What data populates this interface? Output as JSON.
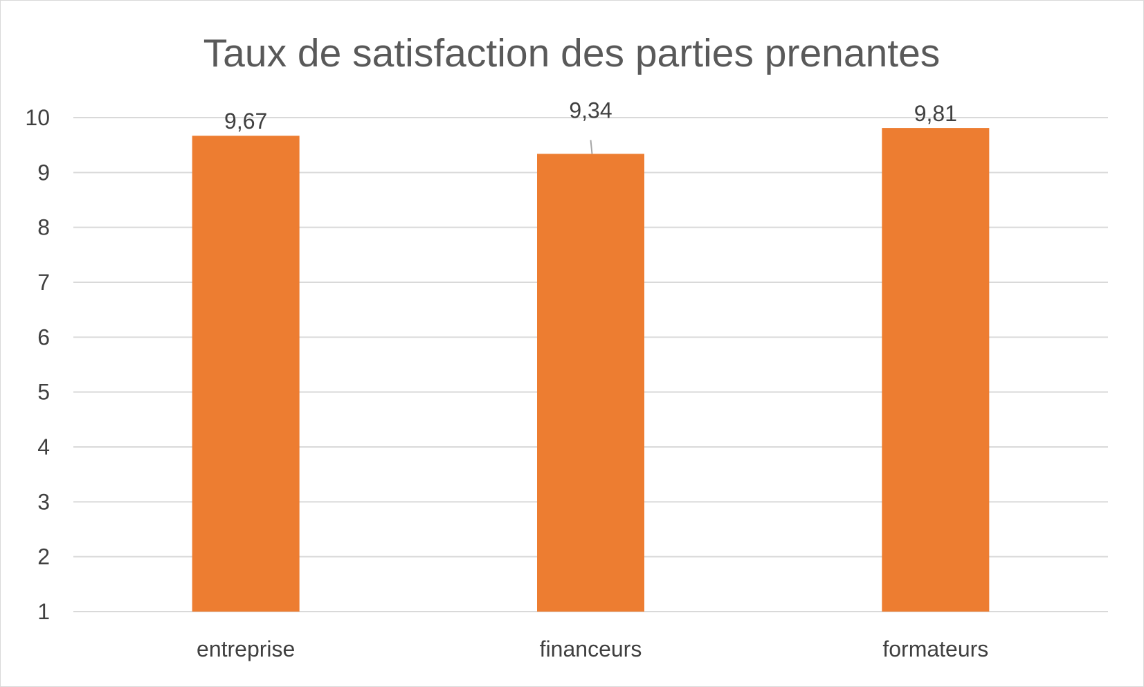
{
  "chart_data": {
    "type": "bar",
    "title": "Taux de satisfaction des parties prenantes",
    "categories": [
      "entreprise",
      "financeurs",
      "formateurs"
    ],
    "values": [
      9.67,
      9.34,
      9.81
    ],
    "value_labels": [
      "9,67",
      "9,34",
      "9,81"
    ],
    "ylim": [
      1,
      10
    ],
    "yticks": [
      "1",
      "2",
      "3",
      "4",
      "5",
      "6",
      "7",
      "8",
      "9",
      "10"
    ],
    "grid": true,
    "legend": "none",
    "bar_color": "#ED7D31",
    "xlabel": "",
    "ylabel": ""
  }
}
